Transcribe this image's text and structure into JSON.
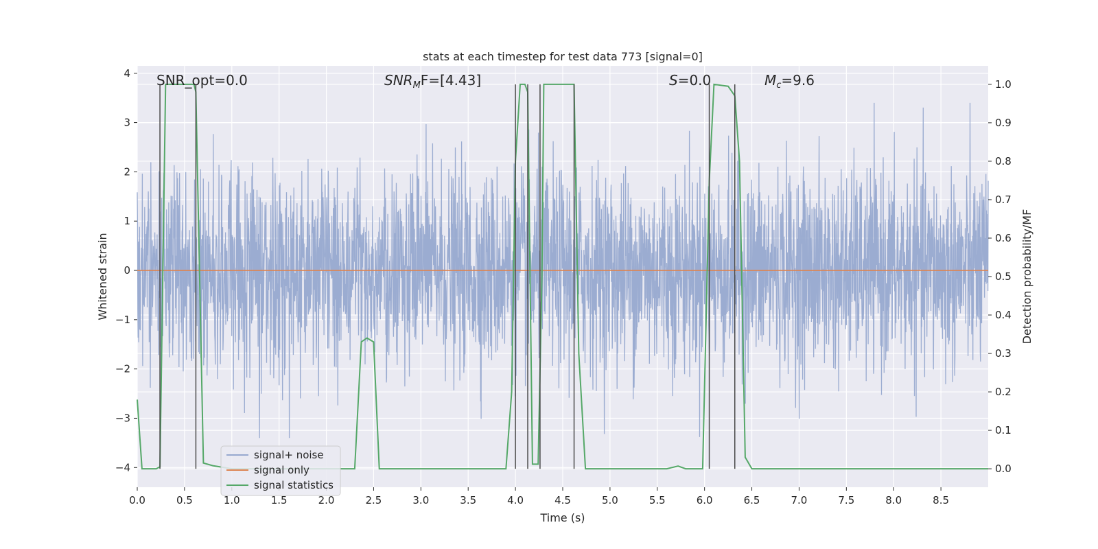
{
  "chart_data": {
    "type": "line",
    "title": "stats at each timestep for test data 773 [signal=0]",
    "xlabel": "Time (s)",
    "ylabel": "Whitened strain",
    "y2label": "Detection probability/MF",
    "xlim": [
      0.0,
      9.0
    ],
    "ylim": [
      -4.4,
      4.15
    ],
    "y2lim": [
      -0.048,
      1.048
    ],
    "xticks": [
      0.0,
      0.5,
      1.0,
      1.5,
      2.0,
      2.5,
      3.0,
      3.5,
      4.0,
      4.5,
      5.0,
      5.5,
      6.0,
      6.5,
      7.0,
      7.5,
      8.0,
      8.5
    ],
    "xtick_labels": [
      "0.0",
      "0.5",
      "1.0",
      "1.5",
      "2.0",
      "2.5",
      "3.0",
      "3.5",
      "4.0",
      "4.5",
      "5.0",
      "5.5",
      "6.0",
      "6.5",
      "7.0",
      "7.5",
      "8.0",
      "8.5"
    ],
    "yticks": [
      -4,
      -3,
      -2,
      -1,
      0,
      1,
      2,
      3,
      4
    ],
    "ytick_labels": [
      "−4",
      "−3",
      "−2",
      "−1",
      "0",
      "1",
      "2",
      "3",
      "4"
    ],
    "y2ticks": [
      0.0,
      0.1,
      0.2,
      0.3,
      0.4,
      0.5,
      0.6,
      0.7,
      0.8,
      0.9,
      1.0
    ],
    "y2tick_labels": [
      "0.0",
      "0.1",
      "0.2",
      "0.3",
      "0.4",
      "0.5",
      "0.6",
      "0.7",
      "0.8",
      "0.9",
      "1.0"
    ],
    "grid": true,
    "legend_position": "lower-left",
    "annotations": [
      {
        "id": "snr-opt",
        "text": "SNR_opt=0.0",
        "x": 0.2
      },
      {
        "id": "snr-mf",
        "text_main": "SNR",
        "text_sub": "M",
        "text_rest": "F=[4.43]",
        "x": 2.6
      },
      {
        "id": "s-value",
        "text_main": "S",
        "text_rest": "=0.0",
        "x": 5.6
      },
      {
        "id": "mc-value",
        "text_main": "M",
        "text_sub": "c",
        "text_rest": "=9.6",
        "x": 6.6
      }
    ],
    "series": [
      {
        "name": "signal+ noise",
        "color": "#97a9cf",
        "kind": "noise",
        "amplitude_std": 1.0,
        "max_abs": 3.4
      },
      {
        "name": "signal only",
        "color": "#dd8452",
        "kind": "constant",
        "y": 0.0
      },
      {
        "name": "signal statistics",
        "color": "#55a868",
        "axis": "right",
        "x": [
          0.0,
          0.05,
          0.2,
          0.24,
          0.3,
          0.6,
          0.62,
          0.7,
          0.8,
          1.0,
          2.3,
          2.37,
          2.43,
          2.5,
          2.56,
          3.9,
          3.96,
          4.0,
          4.05,
          4.1,
          4.13,
          4.18,
          4.24,
          4.28,
          4.3,
          4.62,
          4.67,
          4.74,
          5.6,
          5.72,
          5.8,
          5.98,
          6.05,
          6.1,
          6.25,
          6.32,
          6.37,
          6.43,
          6.5,
          9.0
        ],
        "y": [
          0.18,
          0.0,
          0.0,
          0.005,
          1.0,
          1.0,
          0.98,
          0.015,
          0.008,
          0.0,
          0.0,
          0.33,
          0.34,
          0.33,
          0.0,
          0.0,
          0.2,
          0.8,
          1.0,
          1.0,
          0.98,
          0.012,
          0.012,
          0.5,
          1.0,
          1.0,
          0.3,
          0.0,
          0.0,
          0.007,
          0.0,
          0.0,
          0.75,
          1.0,
          0.995,
          0.97,
          0.8,
          0.03,
          0.0,
          0.0
        ]
      }
    ],
    "vertical_lines": [
      0.24,
      0.62,
      4.0,
      4.13,
      4.26,
      4.62,
      6.05,
      6.32
    ]
  }
}
